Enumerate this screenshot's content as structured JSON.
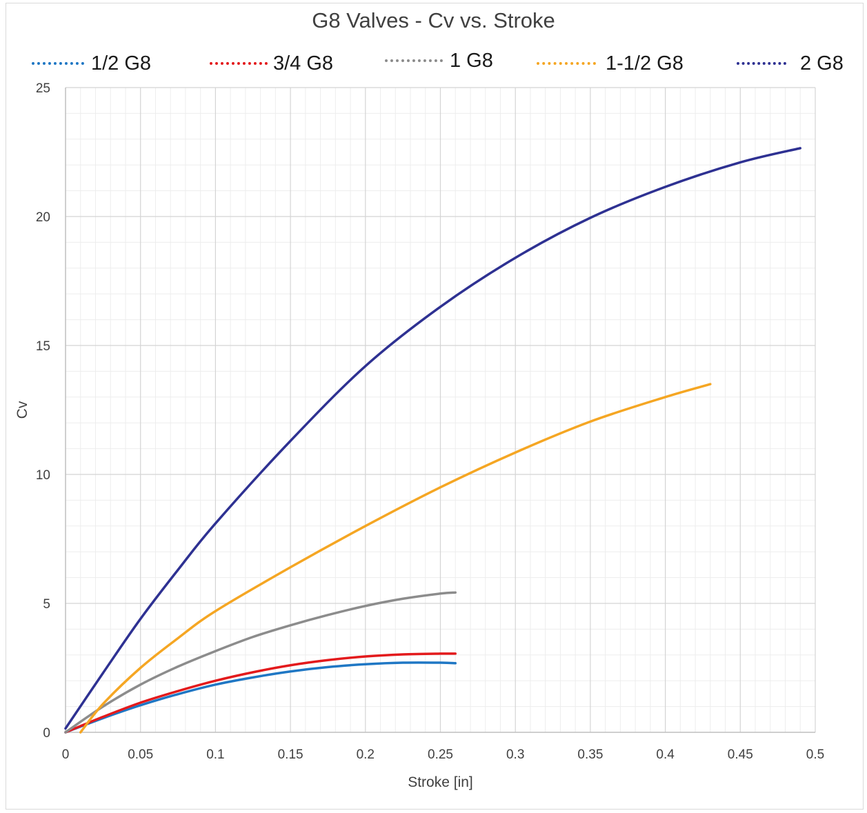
{
  "chart_data": {
    "type": "line",
    "title": "G8 Valves - Cv vs. Stroke",
    "xlabel": "Stroke [in]",
    "ylabel": "Cv",
    "xlim": [
      0,
      0.5
    ],
    "ylim": [
      0,
      25
    ],
    "x_ticks": [
      "0",
      "0.05",
      "0.1",
      "0.15",
      "0.2",
      "0.25",
      "0.3",
      "0.35",
      "0.4",
      "0.45",
      "0.5"
    ],
    "y_ticks": [
      "0",
      "5",
      "10",
      "15",
      "20",
      "25"
    ],
    "grid": "major and minor",
    "legend_position": "top",
    "series": [
      {
        "name": "1/2 G8",
        "color": "#1f77c4",
        "x": [
          0,
          0.025,
          0.05,
          0.075,
          0.1,
          0.125,
          0.15,
          0.175,
          0.2,
          0.225,
          0.25,
          0.26
        ],
        "y": [
          0,
          0.55,
          1.05,
          1.48,
          1.85,
          2.13,
          2.36,
          2.53,
          2.64,
          2.7,
          2.7,
          2.68
        ]
      },
      {
        "name": "3/4 G8",
        "color": "#e31a1c",
        "x": [
          0,
          0.025,
          0.05,
          0.075,
          0.1,
          0.125,
          0.15,
          0.175,
          0.2,
          0.225,
          0.25,
          0.26
        ],
        "y": [
          0,
          0.6,
          1.15,
          1.6,
          2.0,
          2.33,
          2.6,
          2.8,
          2.94,
          3.02,
          3.05,
          3.05
        ]
      },
      {
        "name": "1 G8",
        "color": "#8c8c8c",
        "x": [
          0,
          0.025,
          0.05,
          0.075,
          0.1,
          0.125,
          0.15,
          0.175,
          0.2,
          0.225,
          0.25,
          0.26
        ],
        "y": [
          0,
          1.0,
          1.85,
          2.55,
          3.15,
          3.7,
          4.15,
          4.55,
          4.9,
          5.18,
          5.38,
          5.42
        ]
      },
      {
        "name": "1-1/2 G8",
        "color": "#f5a623",
        "x": [
          0.01,
          0.025,
          0.05,
          0.075,
          0.1,
          0.15,
          0.2,
          0.25,
          0.3,
          0.35,
          0.4,
          0.43
        ],
        "y": [
          0,
          1.1,
          2.5,
          3.65,
          4.7,
          6.4,
          8.0,
          9.5,
          10.85,
          12.05,
          13.0,
          13.5
        ]
      },
      {
        "name": "2 G8",
        "color": "#2e3192",
        "x": [
          0,
          0.025,
          0.05,
          0.075,
          0.1,
          0.15,
          0.2,
          0.25,
          0.3,
          0.35,
          0.4,
          0.45,
          0.49
        ],
        "y": [
          0.15,
          2.3,
          4.4,
          6.3,
          8.1,
          11.3,
          14.2,
          16.5,
          18.4,
          19.95,
          21.15,
          22.1,
          22.65
        ]
      }
    ]
  }
}
